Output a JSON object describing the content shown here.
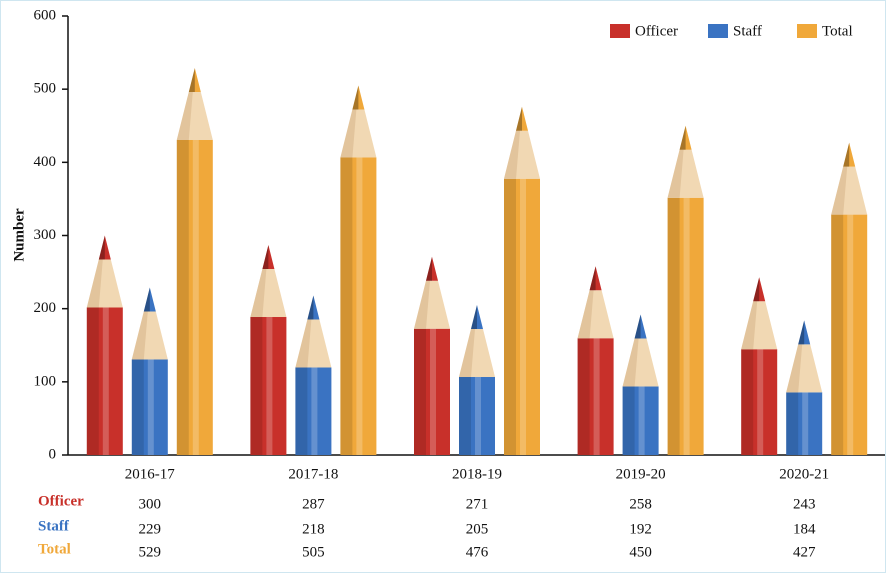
{
  "chart_data": {
    "type": "bar",
    "y_label": "Number",
    "categories": [
      "2016-17",
      "2017-18",
      "2018-19",
      "2019-20",
      "2020-21"
    ],
    "series": [
      {
        "name": "Officer",
        "color": "#c8302a",
        "values": [
          300,
          287,
          271,
          258,
          243
        ]
      },
      {
        "name": "Staff",
        "color": "#3a73c2",
        "values": [
          229,
          218,
          205,
          192,
          184
        ]
      },
      {
        "name": "Total",
        "color": "#f0a83a",
        "values": [
          529,
          505,
          476,
          450,
          427
        ]
      }
    ],
    "ylim": [
      0,
      600
    ],
    "yticks": [
      0,
      100,
      200,
      300,
      400,
      500,
      600
    ],
    "legend": "top-right"
  }
}
